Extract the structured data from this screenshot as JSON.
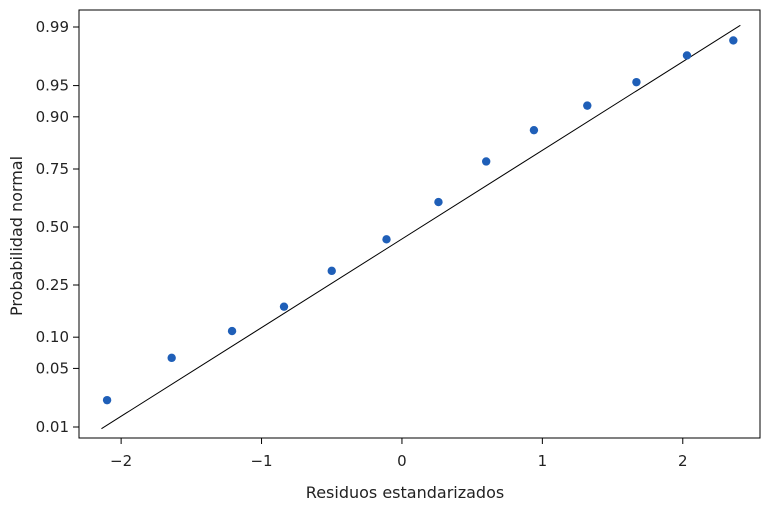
{
  "chart_data": {
    "type": "scatter",
    "title": "",
    "xlabel": "Residuos estandarizados",
    "ylabel": "Probabilidad normal",
    "xlim": [
      -2.3,
      2.55
    ],
    "y_scale": "normal-probability",
    "x_ticks": [
      -2,
      -1,
      0,
      1,
      2
    ],
    "x_tick_labels": [
      "−2",
      "−1",
      "0",
      "1",
      "2"
    ],
    "y_ticks": [
      0.01,
      0.05,
      0.1,
      0.25,
      0.5,
      0.75,
      0.9,
      0.95,
      0.99
    ],
    "y_tick_labels": [
      "0.01",
      "0.05",
      "0.10",
      "0.25",
      "0.50",
      "0.75",
      "0.90",
      "0.95",
      "0.99"
    ],
    "grid": false,
    "legend": "none",
    "point_color": "#1f5fb8",
    "line_color": "#000000",
    "points": [
      {
        "x": -2.1,
        "y": 0.022
      },
      {
        "x": -1.64,
        "y": 0.064
      },
      {
        "x": -1.21,
        "y": 0.113
      },
      {
        "x": -0.84,
        "y": 0.177
      },
      {
        "x": -0.5,
        "y": 0.305
      },
      {
        "x": -0.11,
        "y": 0.443
      },
      {
        "x": 0.26,
        "y": 0.614
      },
      {
        "x": 0.6,
        "y": 0.777
      },
      {
        "x": 0.94,
        "y": 0.87
      },
      {
        "x": 1.32,
        "y": 0.921
      },
      {
        "x": 1.67,
        "y": 0.954
      },
      {
        "x": 2.03,
        "y": 0.977
      },
      {
        "x": 2.36,
        "y": 0.985
      }
    ],
    "fit_line": {
      "x": [
        -2.14,
        2.41
      ],
      "y": [
        0.0095,
        0.9905
      ]
    }
  }
}
